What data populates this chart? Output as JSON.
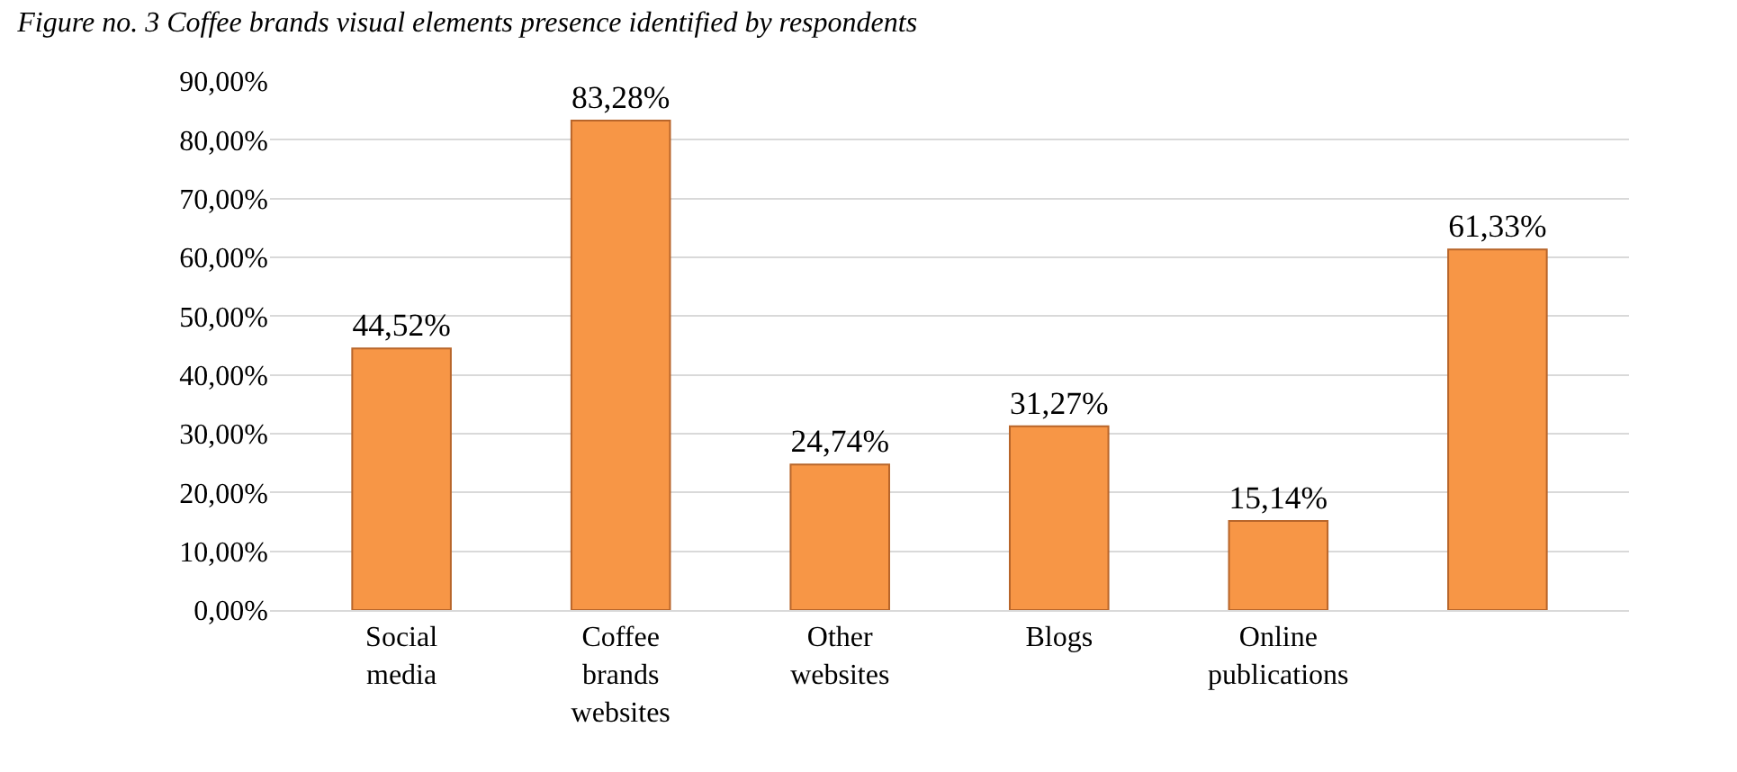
{
  "chart_data": {
    "type": "bar",
    "title": "Figure no. 3 Coffee brands visual elements presence identified by respondents",
    "categories": [
      "Social media",
      "Coffee brands websites",
      "Other websites",
      "Blogs",
      "Online publications",
      null
    ],
    "values": [
      44.52,
      83.28,
      24.74,
      31.27,
      15.14,
      61.33
    ],
    "value_labels": [
      "44,52%",
      "83,28%",
      "24,74%",
      "31,27%",
      "15,14%",
      "61,33%"
    ],
    "color": "#f79646",
    "ylim": [
      0,
      90
    ],
    "yticks": [
      {
        "value": 0,
        "label": "0,00%"
      },
      {
        "value": 10,
        "label": "10,00%"
      },
      {
        "value": 20,
        "label": "20,00%"
      },
      {
        "value": 30,
        "label": "30,00%"
      },
      {
        "value": 40,
        "label": "40,00%"
      },
      {
        "value": 50,
        "label": "50,00%"
      },
      {
        "value": 60,
        "label": "60,00%"
      },
      {
        "value": 70,
        "label": "70,00%"
      },
      {
        "value": 80,
        "label": "80,00%"
      },
      {
        "value": 90,
        "label": "90,00%"
      }
    ],
    "grid": "y",
    "legend": false
  }
}
